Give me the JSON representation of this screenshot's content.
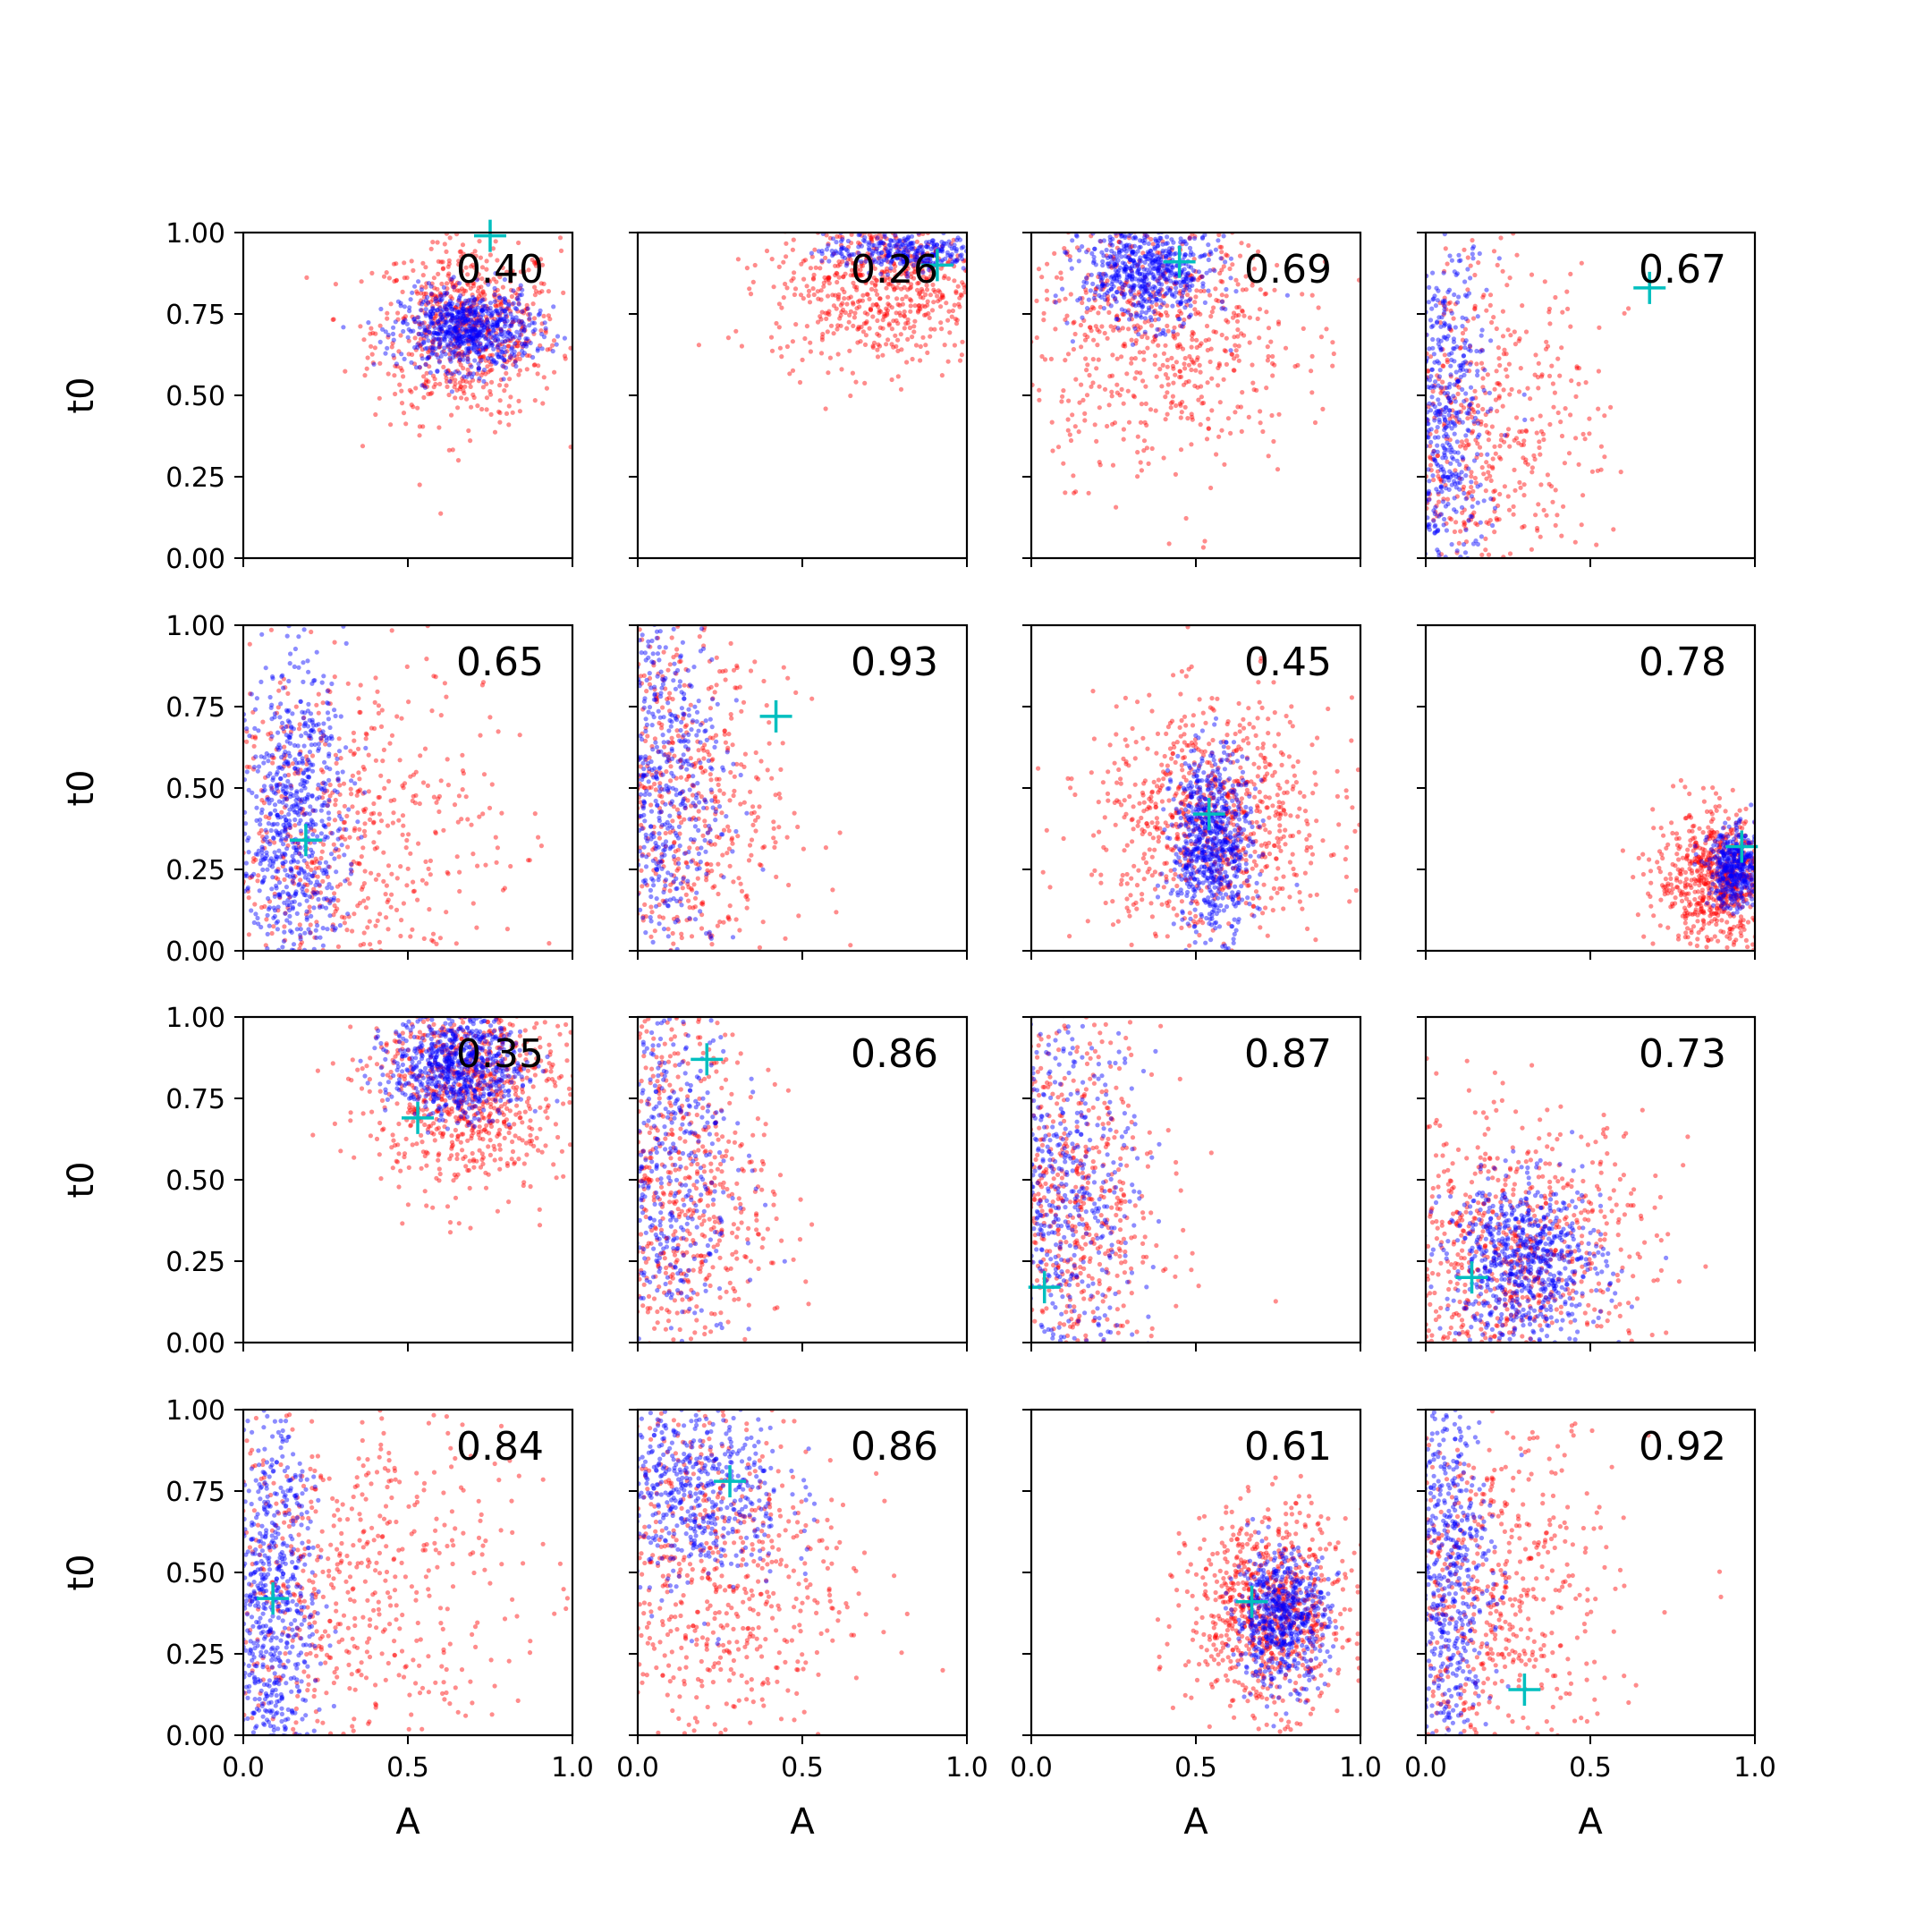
{
  "chart_data": {
    "type": "scatter",
    "layout": {
      "rows": 4,
      "cols": 4,
      "sharex": true,
      "sharey": true
    },
    "xlabel": "A",
    "ylabel": "t0",
    "xlim": [
      0,
      1
    ],
    "ylim": [
      0,
      1
    ],
    "x_ticks": [
      "0.0",
      "0.5",
      "1.0"
    ],
    "y_ticks": [
      "0.00",
      "0.25",
      "0.50",
      "0.75",
      "1.00"
    ],
    "grid": false,
    "colors": {
      "series_a": "#ff0000",
      "series_b": "#0000ff",
      "marker": "#00bfbf"
    },
    "panels": [
      {
        "annotation": "0.40",
        "marker": [
          0.75,
          0.99
        ],
        "red": {
          "cx": 0.68,
          "cy": 0.7,
          "sx": 0.14,
          "sy": 0.14,
          "n": 700
        },
        "blue": {
          "cx": 0.68,
          "cy": 0.7,
          "sx": 0.1,
          "sy": 0.06,
          "n": 700
        }
      },
      {
        "annotation": "0.26",
        "marker": [
          0.91,
          0.9
        ],
        "red": {
          "cx": 0.75,
          "cy": 0.85,
          "sx": 0.17,
          "sy": 0.13,
          "n": 700
        },
        "blue": {
          "cx": 0.8,
          "cy": 0.94,
          "sx": 0.12,
          "sy": 0.03,
          "n": 300
        }
      },
      {
        "annotation": "0.69",
        "marker": [
          0.45,
          0.91
        ],
        "red": {
          "cx": 0.4,
          "cy": 0.72,
          "sx": 0.2,
          "sy": 0.22,
          "n": 700
        },
        "blue": {
          "cx": 0.35,
          "cy": 0.88,
          "sx": 0.1,
          "sy": 0.08,
          "n": 600
        }
      },
      {
        "annotation": "0.67",
        "marker": [
          0.68,
          0.83
        ],
        "red": {
          "cx": 0.12,
          "cy": 0.35,
          "sx": 0.2,
          "sy": 0.3,
          "n": 700
        },
        "blue": {
          "cx": 0.05,
          "cy": 0.4,
          "sx": 0.07,
          "sy": 0.3,
          "n": 600
        }
      },
      {
        "annotation": "0.65",
        "marker": [
          0.19,
          0.34
        ],
        "red": {
          "cx": 0.25,
          "cy": 0.35,
          "sx": 0.25,
          "sy": 0.28,
          "n": 700
        },
        "blue": {
          "cx": 0.15,
          "cy": 0.4,
          "sx": 0.08,
          "sy": 0.25,
          "n": 700
        }
      },
      {
        "annotation": "0.93",
        "marker": [
          0.42,
          0.72
        ],
        "red": {
          "cx": 0.1,
          "cy": 0.45,
          "sx": 0.18,
          "sy": 0.32,
          "n": 700
        },
        "blue": {
          "cx": 0.05,
          "cy": 0.55,
          "sx": 0.1,
          "sy": 0.3,
          "n": 600
        }
      },
      {
        "annotation": "0.45",
        "marker": [
          0.54,
          0.42
        ],
        "red": {
          "cx": 0.55,
          "cy": 0.4,
          "sx": 0.18,
          "sy": 0.18,
          "n": 800
        },
        "blue": {
          "cx": 0.55,
          "cy": 0.33,
          "sx": 0.06,
          "sy": 0.14,
          "n": 700
        }
      },
      {
        "annotation": "0.78",
        "marker": [
          0.96,
          0.32
        ],
        "red": {
          "cx": 0.9,
          "cy": 0.22,
          "sx": 0.1,
          "sy": 0.1,
          "n": 800
        },
        "blue": {
          "cx": 0.94,
          "cy": 0.25,
          "sx": 0.04,
          "sy": 0.06,
          "n": 400
        }
      },
      {
        "annotation": "0.35",
        "marker": [
          0.53,
          0.69
        ],
        "red": {
          "cx": 0.68,
          "cy": 0.78,
          "sx": 0.15,
          "sy": 0.15,
          "n": 800
        },
        "blue": {
          "cx": 0.65,
          "cy": 0.85,
          "sx": 0.1,
          "sy": 0.08,
          "n": 700
        }
      },
      {
        "annotation": "0.86",
        "marker": [
          0.21,
          0.87
        ],
        "red": {
          "cx": 0.1,
          "cy": 0.45,
          "sx": 0.15,
          "sy": 0.32,
          "n": 700
        },
        "blue": {
          "cx": 0.05,
          "cy": 0.55,
          "sx": 0.12,
          "sy": 0.3,
          "n": 500
        }
      },
      {
        "annotation": "0.87",
        "marker": [
          0.04,
          0.17
        ],
        "red": {
          "cx": 0.1,
          "cy": 0.4,
          "sx": 0.15,
          "sy": 0.3,
          "n": 700
        },
        "blue": {
          "cx": 0.08,
          "cy": 0.45,
          "sx": 0.12,
          "sy": 0.32,
          "n": 600
        }
      },
      {
        "annotation": "0.73",
        "marker": [
          0.14,
          0.2
        ],
        "red": {
          "cx": 0.25,
          "cy": 0.25,
          "sx": 0.22,
          "sy": 0.22,
          "n": 800
        },
        "blue": {
          "cx": 0.3,
          "cy": 0.25,
          "sx": 0.12,
          "sy": 0.12,
          "n": 700
        }
      },
      {
        "annotation": "0.84",
        "marker": [
          0.09,
          0.42
        ],
        "red": {
          "cx": 0.25,
          "cy": 0.45,
          "sx": 0.28,
          "sy": 0.3,
          "n": 700
        },
        "blue": {
          "cx": 0.08,
          "cy": 0.4,
          "sx": 0.07,
          "sy": 0.3,
          "n": 700
        }
      },
      {
        "annotation": "0.86",
        "marker": [
          0.28,
          0.78
        ],
        "red": {
          "cx": 0.2,
          "cy": 0.5,
          "sx": 0.22,
          "sy": 0.3,
          "n": 700
        },
        "blue": {
          "cx": 0.15,
          "cy": 0.75,
          "sx": 0.15,
          "sy": 0.15,
          "n": 600
        }
      },
      {
        "annotation": "0.61",
        "marker": [
          0.67,
          0.41
        ],
        "red": {
          "cx": 0.72,
          "cy": 0.38,
          "sx": 0.12,
          "sy": 0.15,
          "n": 800
        },
        "blue": {
          "cx": 0.76,
          "cy": 0.36,
          "sx": 0.07,
          "sy": 0.1,
          "n": 600
        }
      },
      {
        "annotation": "0.92",
        "marker": [
          0.3,
          0.14
        ],
        "red": {
          "cx": 0.18,
          "cy": 0.4,
          "sx": 0.2,
          "sy": 0.3,
          "n": 700
        },
        "blue": {
          "cx": 0.06,
          "cy": 0.5,
          "sx": 0.07,
          "sy": 0.3,
          "n": 600
        }
      }
    ]
  }
}
